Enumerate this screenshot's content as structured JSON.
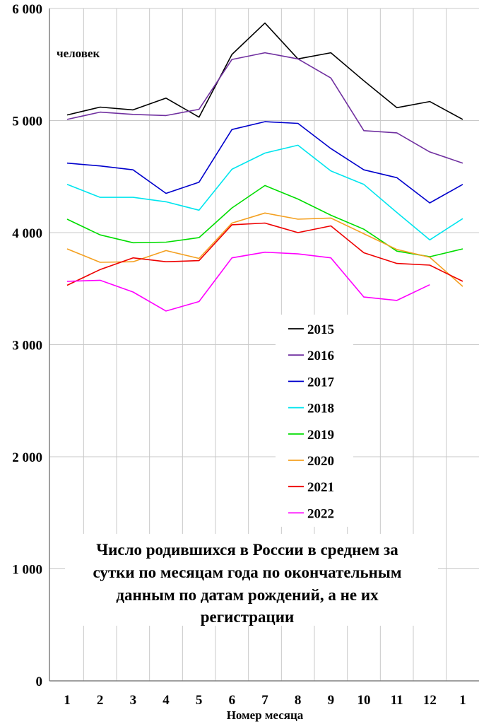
{
  "chart_data": {
    "type": "line",
    "title": "Число родившихся в России в среднем за сутки по месяцам года по окончательным данным по датам рождений, а не их регистрации",
    "title_lines": [
      "Число родившихся в России в среднем за",
      "сутки по месяцам года по окончательным",
      "данным по датам рождений, а не их",
      "регистрации"
    ],
    "ylabel": "человек",
    "xlabel": "Номер месяца",
    "ylim": [
      0,
      6000
    ],
    "yticks": [
      0,
      1000,
      2000,
      3000,
      4000,
      5000,
      6000
    ],
    "ytick_labels": [
      "0",
      "1 000",
      "2 000",
      "3 000",
      "4 000",
      "5 000",
      "6 000"
    ],
    "categories": [
      "1",
      "2",
      "3",
      "4",
      "5",
      "6",
      "7",
      "8",
      "9",
      "10",
      "11",
      "12",
      "1"
    ],
    "grid": true,
    "legend_position": "center-right",
    "series": [
      {
        "name": "2015",
        "color": "#000000",
        "values": [
          5050,
          5120,
          5095,
          5200,
          5030,
          5590,
          5870,
          5550,
          5605,
          5355,
          5115,
          5170,
          5010
        ]
      },
      {
        "name": "2016",
        "color": "#7030a0",
        "values": [
          5010,
          5075,
          5055,
          5045,
          5100,
          5545,
          5605,
          5550,
          5380,
          4910,
          4890,
          4720,
          4620
        ]
      },
      {
        "name": "2017",
        "color": "#0000cc",
        "values": [
          4620,
          4595,
          4560,
          4350,
          4450,
          4920,
          4990,
          4975,
          4750,
          4560,
          4490,
          4265,
          4430
        ]
      },
      {
        "name": "2018",
        "color": "#00e5ee",
        "values": [
          4430,
          4315,
          4315,
          4275,
          4200,
          4565,
          4710,
          4780,
          4550,
          4430,
          4180,
          3935,
          4125
        ]
      },
      {
        "name": "2019",
        "color": "#00dd00",
        "values": [
          4120,
          3980,
          3910,
          3915,
          3955,
          4220,
          4420,
          4300,
          4155,
          4030,
          3835,
          3785,
          3855
        ]
      },
      {
        "name": "2020",
        "color": "#f4a020",
        "values": [
          3855,
          3735,
          3740,
          3840,
          3770,
          4085,
          4175,
          4120,
          4130,
          3990,
          3850,
          3780,
          3520
        ]
      },
      {
        "name": "2021",
        "color": "#ee0000",
        "values": [
          3530,
          3670,
          3775,
          3740,
          3750,
          4070,
          4085,
          4000,
          4060,
          3820,
          3725,
          3710,
          3565
        ]
      },
      {
        "name": "2022",
        "color": "#ff00ff",
        "values": [
          3565,
          3575,
          3470,
          3300,
          3385,
          3775,
          3825,
          3810,
          3775,
          3425,
          3395,
          3535,
          null
        ]
      }
    ]
  }
}
